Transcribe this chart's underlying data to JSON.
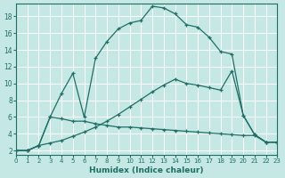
{
  "xlabel": "Humidex (Indice chaleur)",
  "bg_color": "#c5e8e5",
  "grid_color": "#ffffff",
  "line_color": "#1e6e65",
  "xlim": [
    0,
    23
  ],
  "ylim": [
    1.5,
    19.5
  ],
  "xticks": [
    0,
    1,
    2,
    3,
    4,
    5,
    6,
    7,
    8,
    9,
    10,
    11,
    12,
    13,
    14,
    15,
    16,
    17,
    18,
    19,
    20,
    21,
    22,
    23
  ],
  "yticks": [
    2,
    4,
    6,
    8,
    10,
    12,
    14,
    16,
    18
  ],
  "curve1_x": [
    0,
    1,
    2,
    3,
    4,
    5,
    6,
    7,
    8,
    9,
    10,
    11,
    12,
    13,
    14,
    15,
    16,
    17,
    18,
    19,
    20,
    21,
    22,
    23
  ],
  "curve1_y": [
    2.0,
    2.0,
    2.6,
    6.0,
    8.8,
    11.2,
    6.0,
    13.0,
    15.0,
    16.5,
    17.2,
    17.5,
    19.2,
    19.0,
    18.3,
    17.0,
    16.7,
    15.5,
    13.8,
    13.5,
    6.2,
    3.9,
    3.0,
    3.0
  ],
  "curve2_x": [
    0,
    1,
    2,
    3,
    4,
    5,
    6,
    7,
    8,
    9,
    10,
    11,
    12,
    13,
    14,
    15,
    16,
    17,
    18,
    19,
    20,
    21,
    22,
    23
  ],
  "curve2_y": [
    2.0,
    2.0,
    2.6,
    6.0,
    5.8,
    5.5,
    5.5,
    5.2,
    5.0,
    4.8,
    4.8,
    4.7,
    4.6,
    4.5,
    4.4,
    4.3,
    4.2,
    4.1,
    4.0,
    3.9,
    3.8,
    3.8,
    3.0,
    3.0
  ],
  "curve3_x": [
    0,
    1,
    2,
    3,
    4,
    5,
    6,
    7,
    8,
    9,
    10,
    11,
    12,
    13,
    14,
    15,
    16,
    17,
    18,
    19,
    20,
    21,
    22,
    23
  ],
  "curve3_y": [
    2.0,
    2.0,
    2.6,
    2.9,
    3.2,
    3.7,
    4.2,
    4.8,
    5.5,
    6.3,
    7.2,
    8.1,
    9.0,
    9.8,
    10.5,
    10.0,
    9.8,
    9.5,
    9.2,
    11.5,
    6.2,
    3.9,
    3.0,
    3.0
  ]
}
